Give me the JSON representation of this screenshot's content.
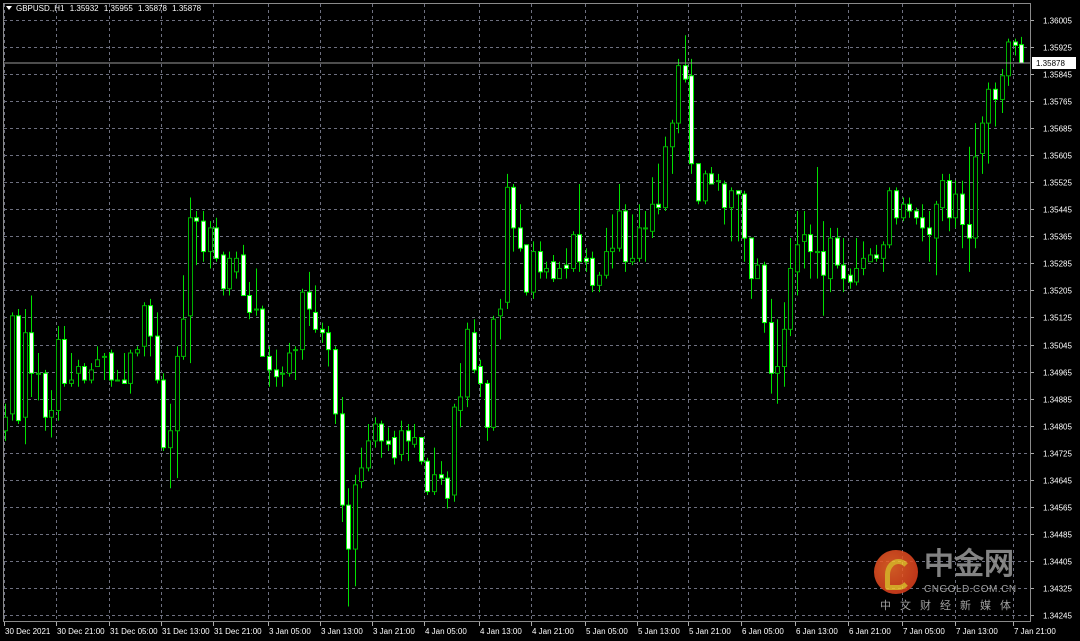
{
  "header": {
    "symbol": "GBPUSD.,H1",
    "open": "1.35932",
    "high": "1.35955",
    "low": "1.35878",
    "close": "1.35878"
  },
  "watermark": {
    "name": "中金网",
    "url": "CNGOLD.COM.CN",
    "tagline": "中文财经新媒体"
  },
  "colors": {
    "background": "#000000",
    "grid": "#6e7080",
    "wick": "#00e000",
    "bull_outline": "#00b000",
    "bear_outline": "#00ff00",
    "bear_fill": "#ffffff",
    "axis_text": "#ffffff",
    "bid_line": "#9a9a9a"
  },
  "chart_data": {
    "type": "candlestick",
    "symbol": "GBPUSD.",
    "timeframe": "H1",
    "grid": true,
    "ylim": [
      1.34245,
      1.36005
    ],
    "current_price": "1.35878",
    "y_ticks": [
      "1.36005",
      "1.35925",
      "1.35845",
      "1.35765",
      "1.35685",
      "1.35605",
      "1.35525",
      "1.35445",
      "1.35365",
      "1.35285",
      "1.35205",
      "1.35125",
      "1.35045",
      "1.34965",
      "1.34885",
      "1.34805",
      "1.34725",
      "1.34645",
      "1.34565",
      "1.34485",
      "1.34405",
      "1.34325",
      "1.34245"
    ],
    "x_labels": [
      "30 Dec 2021",
      "30 Dec 21:00",
      "31 Dec 05:00",
      "31 Dec 13:00",
      "31 Dec 21:00",
      "3 Jan 05:00",
      "3 Jan 13:00",
      "3 Jan 21:00",
      "4 Jan 05:00",
      "4 Jan 13:00",
      "4 Jan 21:00",
      "5 Jan 05:00",
      "5 Jan 13:00",
      "5 Jan 21:00",
      "6 Jan 05:00",
      "6 Jan 13:00",
      "6 Jan 21:00",
      "7 Jan 05:00",
      "7 Jan 13:00",
      "7 Jan 21:00"
    ],
    "ohlc": [
      [
        1.3479,
        1.3487,
        1.3476,
        1.3483
      ],
      [
        1.3484,
        1.3514,
        1.3482,
        1.3513
      ],
      [
        1.3513,
        1.3515,
        1.3481,
        1.3482
      ],
      [
        1.3483,
        1.3515,
        1.3475,
        1.3508
      ],
      [
        1.3508,
        1.3519,
        1.3489,
        1.3496
      ],
      [
        1.3496,
        1.3502,
        1.3488,
        1.3496
      ],
      [
        1.3496,
        1.3497,
        1.3479,
        1.3483
      ],
      [
        1.3483,
        1.3491,
        1.3477,
        1.3485
      ],
      [
        1.3485,
        1.351,
        1.3482,
        1.3506
      ],
      [
        1.3506,
        1.351,
        1.3492,
        1.3493
      ],
      [
        1.3493,
        1.3502,
        1.3492,
        1.3494
      ],
      [
        1.3496,
        1.35,
        1.3492,
        1.3498
      ],
      [
        1.3498,
        1.3499,
        1.3493,
        1.3494
      ],
      [
        1.3494,
        1.3499,
        1.3493,
        1.3497
      ],
      [
        1.3498,
        1.3504,
        1.3498,
        1.35
      ],
      [
        1.3501,
        1.3502,
        1.3494,
        1.3501
      ],
      [
        1.3502,
        1.3503,
        1.3492,
        1.3494
      ],
      [
        1.3494,
        1.3497,
        1.3494,
        1.3494
      ],
      [
        1.3494,
        1.3502,
        1.3493,
        1.3493
      ],
      [
        1.3493,
        1.3503,
        1.349,
        1.3502
      ],
      [
        1.3502,
        1.3504,
        1.3501,
        1.3503
      ],
      [
        1.3504,
        1.3517,
        1.3501,
        1.3516
      ],
      [
        1.3516,
        1.3518,
        1.3501,
        1.3507
      ],
      [
        1.3507,
        1.3514,
        1.3493,
        1.3494
      ],
      [
        1.3494,
        1.3496,
        1.3473,
        1.3474
      ],
      [
        1.3474,
        1.3487,
        1.3462,
        1.3479
      ],
      [
        1.3479,
        1.3504,
        1.3465,
        1.3501
      ],
      [
        1.3501,
        1.3525,
        1.35,
        1.3512
      ],
      [
        1.3513,
        1.3548,
        1.3499,
        1.3542
      ],
      [
        1.3542,
        1.3544,
        1.3528,
        1.3541
      ],
      [
        1.3541,
        1.3544,
        1.3529,
        1.3532
      ],
      [
        1.3532,
        1.3541,
        1.3527,
        1.3539
      ],
      [
        1.3539,
        1.3542,
        1.3529,
        1.353
      ],
      [
        1.3531,
        1.3532,
        1.3519,
        1.3521
      ],
      [
        1.3521,
        1.3532,
        1.3519,
        1.353
      ],
      [
        1.3526,
        1.3532,
        1.3524,
        1.353
      ],
      [
        1.3531,
        1.3534,
        1.3519,
        1.3519
      ],
      [
        1.3519,
        1.3523,
        1.3512,
        1.3514
      ],
      [
        1.3515,
        1.3527,
        1.3513,
        1.3515
      ],
      [
        1.3515,
        1.3516,
        1.3501,
        1.3501
      ],
      [
        1.3501,
        1.3504,
        1.3492,
        1.3497
      ],
      [
        1.3497,
        1.3503,
        1.3492,
        1.3495
      ],
      [
        1.3496,
        1.3498,
        1.3492,
        1.3496
      ],
      [
        1.3496,
        1.3505,
        1.3495,
        1.3502
      ],
      [
        1.3503,
        1.3504,
        1.3494,
        1.3503
      ],
      [
        1.3503,
        1.3521,
        1.35,
        1.352
      ],
      [
        1.352,
        1.3526,
        1.351,
        1.3515
      ],
      [
        1.3514,
        1.3522,
        1.3508,
        1.3509
      ],
      [
        1.3509,
        1.3511,
        1.3505,
        1.3508
      ],
      [
        1.3508,
        1.351,
        1.3498,
        1.3503
      ],
      [
        1.3503,
        1.3504,
        1.3481,
        1.3484
      ],
      [
        1.3484,
        1.3489,
        1.3452,
        1.3457
      ],
      [
        1.3457,
        1.3462,
        1.3427,
        1.3444
      ],
      [
        1.3444,
        1.3466,
        1.3433,
        1.3463
      ],
      [
        1.3464,
        1.3474,
        1.3462,
        1.3468
      ],
      [
        1.3468,
        1.3481,
        1.3467,
        1.3476
      ],
      [
        1.3476,
        1.3483,
        1.3474,
        1.3481
      ],
      [
        1.3481,
        1.3482,
        1.3471,
        1.3476
      ],
      [
        1.3476,
        1.348,
        1.3473,
        1.3475
      ],
      [
        1.3477,
        1.3479,
        1.3469,
        1.3471
      ],
      [
        1.3472,
        1.3482,
        1.347,
        1.3479
      ],
      [
        1.3479,
        1.3481,
        1.347,
        1.3476
      ],
      [
        1.3475,
        1.3481,
        1.3474,
        1.3477
      ],
      [
        1.3477,
        1.3477,
        1.3469,
        1.347
      ],
      [
        1.347,
        1.3471,
        1.346,
        1.3461
      ],
      [
        1.3461,
        1.3474,
        1.346,
        1.3466
      ],
      [
        1.3466,
        1.347,
        1.3463,
        1.3465
      ],
      [
        1.3465,
        1.3467,
        1.3456,
        1.3459
      ],
      [
        1.346,
        1.3487,
        1.3458,
        1.3486
      ],
      [
        1.3485,
        1.3499,
        1.348,
        1.3489
      ],
      [
        1.3489,
        1.3511,
        1.3486,
        1.3509
      ],
      [
        1.3508,
        1.3512,
        1.3496,
        1.3497
      ],
      [
        1.3498,
        1.35,
        1.3489,
        1.3493
      ],
      [
        1.3493,
        1.3494,
        1.3476,
        1.348
      ],
      [
        1.348,
        1.3513,
        1.3479,
        1.3512
      ],
      [
        1.3513,
        1.3518,
        1.3506,
        1.3515
      ],
      [
        1.3517,
        1.3555,
        1.3515,
        1.3551
      ],
      [
        1.3551,
        1.3552,
        1.3532,
        1.3539
      ],
      [
        1.3539,
        1.3546,
        1.3532,
        1.3533
      ],
      [
        1.3534,
        1.3534,
        1.3519,
        1.352
      ],
      [
        1.352,
        1.3535,
        1.3518,
        1.3532
      ],
      [
        1.3532,
        1.3535,
        1.3524,
        1.3526
      ],
      [
        1.3526,
        1.3529,
        1.3524,
        1.3527
      ],
      [
        1.3529,
        1.3531,
        1.3523,
        1.3524
      ],
      [
        1.3524,
        1.3529,
        1.3524,
        1.3527
      ],
      [
        1.3528,
        1.3533,
        1.3524,
        1.3527
      ],
      [
        1.3527,
        1.3538,
        1.3526,
        1.3537
      ],
      [
        1.3537,
        1.3552,
        1.3526,
        1.3529
      ],
      [
        1.353,
        1.3533,
        1.3526,
        1.3529
      ],
      [
        1.353,
        1.3532,
        1.352,
        1.3522
      ],
      [
        1.3522,
        1.3526,
        1.352,
        1.3525
      ],
      [
        1.3525,
        1.3539,
        1.3524,
        1.3532
      ],
      [
        1.3532,
        1.3543,
        1.3527,
        1.3533
      ],
      [
        1.3533,
        1.3552,
        1.3532,
        1.3544
      ],
      [
        1.3544,
        1.3546,
        1.3526,
        1.3529
      ],
      [
        1.3529,
        1.3543,
        1.3528,
        1.353
      ],
      [
        1.353,
        1.3546,
        1.3529,
        1.3539
      ],
      [
        1.3539,
        1.3544,
        1.3529,
        1.3539
      ],
      [
        1.3538,
        1.3554,
        1.3536,
        1.3546
      ],
      [
        1.3546,
        1.3558,
        1.3543,
        1.3545
      ],
      [
        1.3545,
        1.3566,
        1.3544,
        1.3563
      ],
      [
        1.3563,
        1.3571,
        1.3555,
        1.357
      ],
      [
        1.357,
        1.3589,
        1.3567,
        1.3587
      ],
      [
        1.3587,
        1.3596,
        1.3582,
        1.3583
      ],
      [
        1.3584,
        1.3589,
        1.3555,
        1.3558
      ],
      [
        1.3558,
        1.3558,
        1.3546,
        1.3547
      ],
      [
        1.3547,
        1.3556,
        1.3546,
        1.3555
      ],
      [
        1.3555,
        1.3557,
        1.3552,
        1.3552
      ],
      [
        1.3553,
        1.3555,
        1.355,
        1.3553
      ],
      [
        1.3552,
        1.3553,
        1.354,
        1.3545
      ],
      [
        1.3545,
        1.3551,
        1.3535,
        1.355
      ],
      [
        1.355,
        1.355,
        1.3535,
        1.3549
      ],
      [
        1.3549,
        1.355,
        1.3529,
        1.3536
      ],
      [
        1.3536,
        1.3536,
        1.3518,
        1.3524
      ],
      [
        1.3524,
        1.353,
        1.3524,
        1.3528
      ],
      [
        1.3528,
        1.3529,
        1.3508,
        1.3511
      ],
      [
        1.3511,
        1.3518,
        1.349,
        1.3496
      ],
      [
        1.3496,
        1.3512,
        1.3487,
        1.3498
      ],
      [
        1.3498,
        1.3517,
        1.3492,
        1.3509
      ],
      [
        1.3509,
        1.3536,
        1.3507,
        1.3527
      ],
      [
        1.3526,
        1.3544,
        1.3519,
        1.3534
      ],
      [
        1.3535,
        1.3544,
        1.3527,
        1.3537
      ],
      [
        1.3537,
        1.354,
        1.3524,
        1.3532
      ],
      [
        1.3532,
        1.3557,
        1.3524,
        1.3532
      ],
      [
        1.3532,
        1.3541,
        1.3513,
        1.3525
      ],
      [
        1.3524,
        1.3539,
        1.352,
        1.3536
      ],
      [
        1.3536,
        1.3539,
        1.3527,
        1.3528
      ],
      [
        1.3528,
        1.3536,
        1.352,
        1.3524
      ],
      [
        1.3525,
        1.3527,
        1.3521,
        1.3523
      ],
      [
        1.3523,
        1.3536,
        1.3522,
        1.3527
      ],
      [
        1.3527,
        1.3535,
        1.3525,
        1.353
      ],
      [
        1.3529,
        1.3533,
        1.3529,
        1.3531
      ],
      [
        1.3531,
        1.3534,
        1.3529,
        1.353
      ],
      [
        1.353,
        1.3535,
        1.3526,
        1.3534
      ],
      [
        1.3534,
        1.3551,
        1.3533,
        1.355
      ],
      [
        1.355,
        1.3551,
        1.354,
        1.3542
      ],
      [
        1.3542,
        1.3548,
        1.3541,
        1.3546
      ],
      [
        1.3546,
        1.3548,
        1.3542,
        1.3544
      ],
      [
        1.3544,
        1.3545,
        1.354,
        1.3542
      ],
      [
        1.3542,
        1.3546,
        1.3535,
        1.3539
      ],
      [
        1.3539,
        1.3544,
        1.3529,
        1.3537
      ],
      [
        1.3536,
        1.3547,
        1.3525,
        1.3546
      ],
      [
        1.3545,
        1.3555,
        1.3541,
        1.3553
      ],
      [
        1.3553,
        1.3555,
        1.3538,
        1.3542
      ],
      [
        1.3542,
        1.3553,
        1.3539,
        1.3549
      ],
      [
        1.3549,
        1.3553,
        1.3533,
        1.354
      ],
      [
        1.354,
        1.3563,
        1.3526,
        1.3536
      ],
      [
        1.3536,
        1.357,
        1.3533,
        1.356
      ],
      [
        1.3561,
        1.3572,
        1.3555,
        1.357
      ],
      [
        1.357,
        1.3582,
        1.3558,
        1.358
      ],
      [
        1.358,
        1.3582,
        1.3569,
        1.3577
      ],
      [
        1.3577,
        1.3586,
        1.3573,
        1.3584
      ],
      [
        1.3584,
        1.3595,
        1.3581,
        1.3594
      ],
      [
        1.3594,
        1.3595,
        1.359,
        1.3593
      ],
      [
        1.35932,
        1.35955,
        1.35878,
        1.35878
      ]
    ]
  }
}
